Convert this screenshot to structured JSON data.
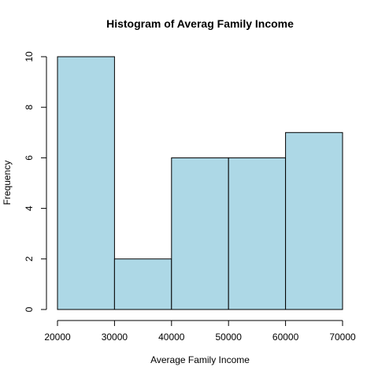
{
  "chart_data": {
    "type": "bar",
    "title": "Histogram of Averag Family Income",
    "xlabel": "Average Family Income",
    "ylabel": "Frequency",
    "bin_edges": [
      20000,
      30000,
      40000,
      50000,
      60000,
      70000
    ],
    "values": [
      10,
      2,
      6,
      6,
      7
    ],
    "xlim": [
      20000,
      70000
    ],
    "ylim": [
      0,
      10
    ],
    "x_ticks": [
      20000,
      30000,
      40000,
      50000,
      60000,
      70000
    ],
    "x_tick_labels": [
      "20000",
      "30000",
      "40000",
      "50000",
      "60000",
      "70000"
    ],
    "y_ticks": [
      0,
      2,
      4,
      6,
      8,
      10
    ],
    "y_tick_labels": [
      "0",
      "2",
      "4",
      "6",
      "8",
      "10"
    ],
    "grid": false,
    "bar_color": "#add8e6",
    "edge_color": "#000000"
  }
}
